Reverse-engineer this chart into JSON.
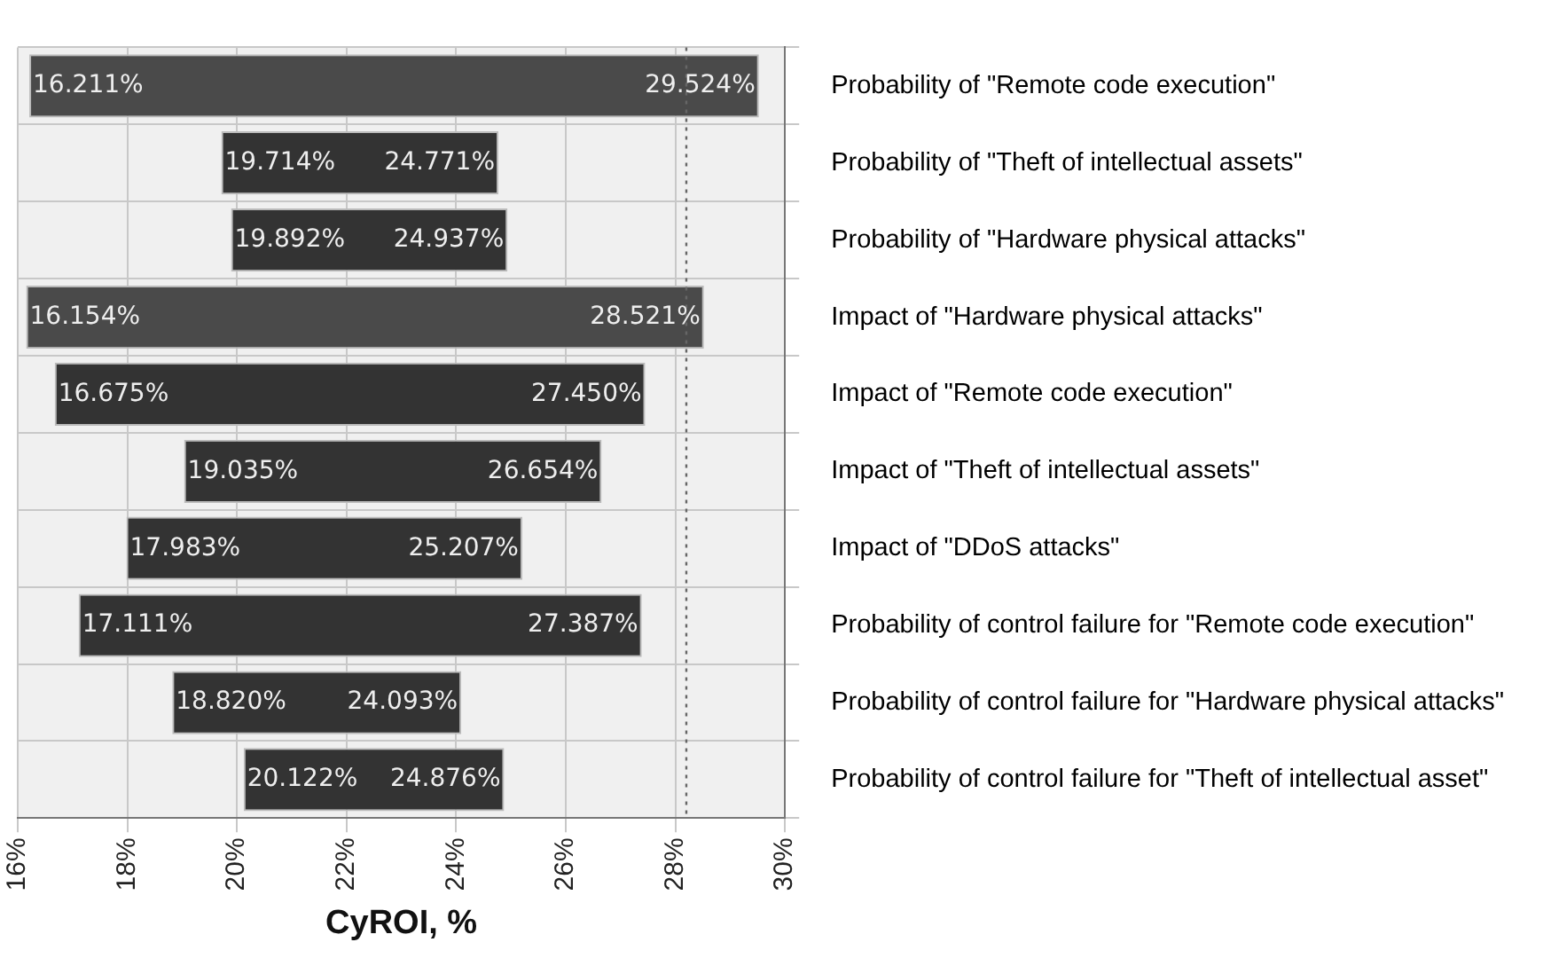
{
  "chart_data": {
    "type": "bar",
    "orientation": "horizontal",
    "xlabel": "CyROI, %",
    "categories": [
      "Probability of \"Remote code execution\"",
      "Probability of \"Theft of intellectual assets\"",
      "Probability of \"Hardware physical attacks\"",
      "Impact of \"Hardware physical attacks\"",
      "Impact of \"Remote code execution\"",
      "Impact of \"Theft of intellectual assets\"",
      "Impact of \"DDoS attacks\"",
      "Probability of control failure for \"Remote code execution\"",
      "Probability of control failure for \"Hardware physical attacks\"",
      "Probability of control failure for \"Theft of intellectual asset\""
    ],
    "base": [
      16.211,
      19.714,
      19.892,
      16.154,
      16.675,
      19.035,
      17.983,
      17.111,
      18.82,
      20.122
    ],
    "values": [
      13.313,
      5.057,
      5.045,
      12.367,
      10.775,
      7.619,
      7.224,
      10.276,
      5.273,
      4.754
    ],
    "colors": [
      "#4a4a4a",
      "#333333",
      "#333333",
      "#4a4a4a",
      "#333333",
      "#333333",
      "#333333",
      "#333333",
      "#333333",
      "#333333"
    ],
    "xlim": [
      16,
      30
    ],
    "xticks": [
      {
        "value": 16,
        "label": "16%"
      },
      {
        "value": 18,
        "label": "18%"
      },
      {
        "value": 20,
        "label": "20%"
      },
      {
        "value": 22,
        "label": "22%"
      },
      {
        "value": 24,
        "label": "24%"
      },
      {
        "value": 26,
        "label": "26%"
      },
      {
        "value": 28,
        "label": "28%"
      },
      {
        "value": 30,
        "label": "30%"
      }
    ],
    "ref_lines": [
      {
        "axis": "x",
        "value": 28.2,
        "color": "#666666",
        "line_style": "dotted"
      }
    ],
    "grid": true,
    "legend": false,
    "annotations": [
      {
        "text": "16.211%",
        "x": 16.211,
        "y": "Probability of \"Remote code execution\""
      },
      {
        "text": "29.524%",
        "x": 29.524,
        "y": "Probability of \"Remote code execution\""
      },
      {
        "text": "19.714%",
        "x": 19.714,
        "y": "Probability of \"Theft of intellectual assets\""
      },
      {
        "text": "24.771%",
        "x": 24.771,
        "y": "Probability of \"Theft of intellectual assets\""
      },
      {
        "text": "19.892%",
        "x": 19.892,
        "y": "Probability of \"Hardware physical attacks\""
      },
      {
        "text": "24.937%",
        "x": 24.937,
        "y": "Probability of \"Hardware physical attacks\""
      },
      {
        "text": "16.154%",
        "x": 16.154,
        "y": "Impact of \"Hardware physical attacks\""
      },
      {
        "text": "28.521%",
        "x": 28.521,
        "y": "Impact of \"Hardware physical attacks\""
      },
      {
        "text": "16.675%",
        "x": 16.675,
        "y": "Impact of \"Remote code execution\""
      },
      {
        "text": "27.450%",
        "x": 27.45,
        "y": "Impact of \"Remote code execution\""
      },
      {
        "text": "19.035%",
        "x": 19.035,
        "y": "Impact of \"Theft of intellectual assets\""
      },
      {
        "text": "26.654%",
        "x": 26.654,
        "y": "Impact of \"Theft of intellectual assets\""
      },
      {
        "text": "17.983%",
        "x": 17.983,
        "y": "Impact of \"DDoS attacks\""
      },
      {
        "text": "25.207%",
        "x": 25.207,
        "y": "Impact of \"DDoS attacks\""
      },
      {
        "text": "17.111%",
        "x": 17.111,
        "y": "Probability of control failure for \"Remote code execution\""
      },
      {
        "text": "27.387%",
        "x": 27.387,
        "y": "Probability of control failure for \"Remote code execution\""
      },
      {
        "text": "18.820%",
        "x": 18.82,
        "y": "Probability of control failure for \"Hardware physical attacks\""
      },
      {
        "text": "24.093%",
        "x": 24.093,
        "y": "Probability of control failure for \"Hardware physical attacks\""
      },
      {
        "text": "20.122%",
        "x": 20.122,
        "y": "Probability of control failure for \"Theft of intellectual asset\""
      },
      {
        "text": "24.876%",
        "x": 24.876,
        "y": "Probability of control failure for \"Theft of intellectual asset\""
      }
    ]
  }
}
